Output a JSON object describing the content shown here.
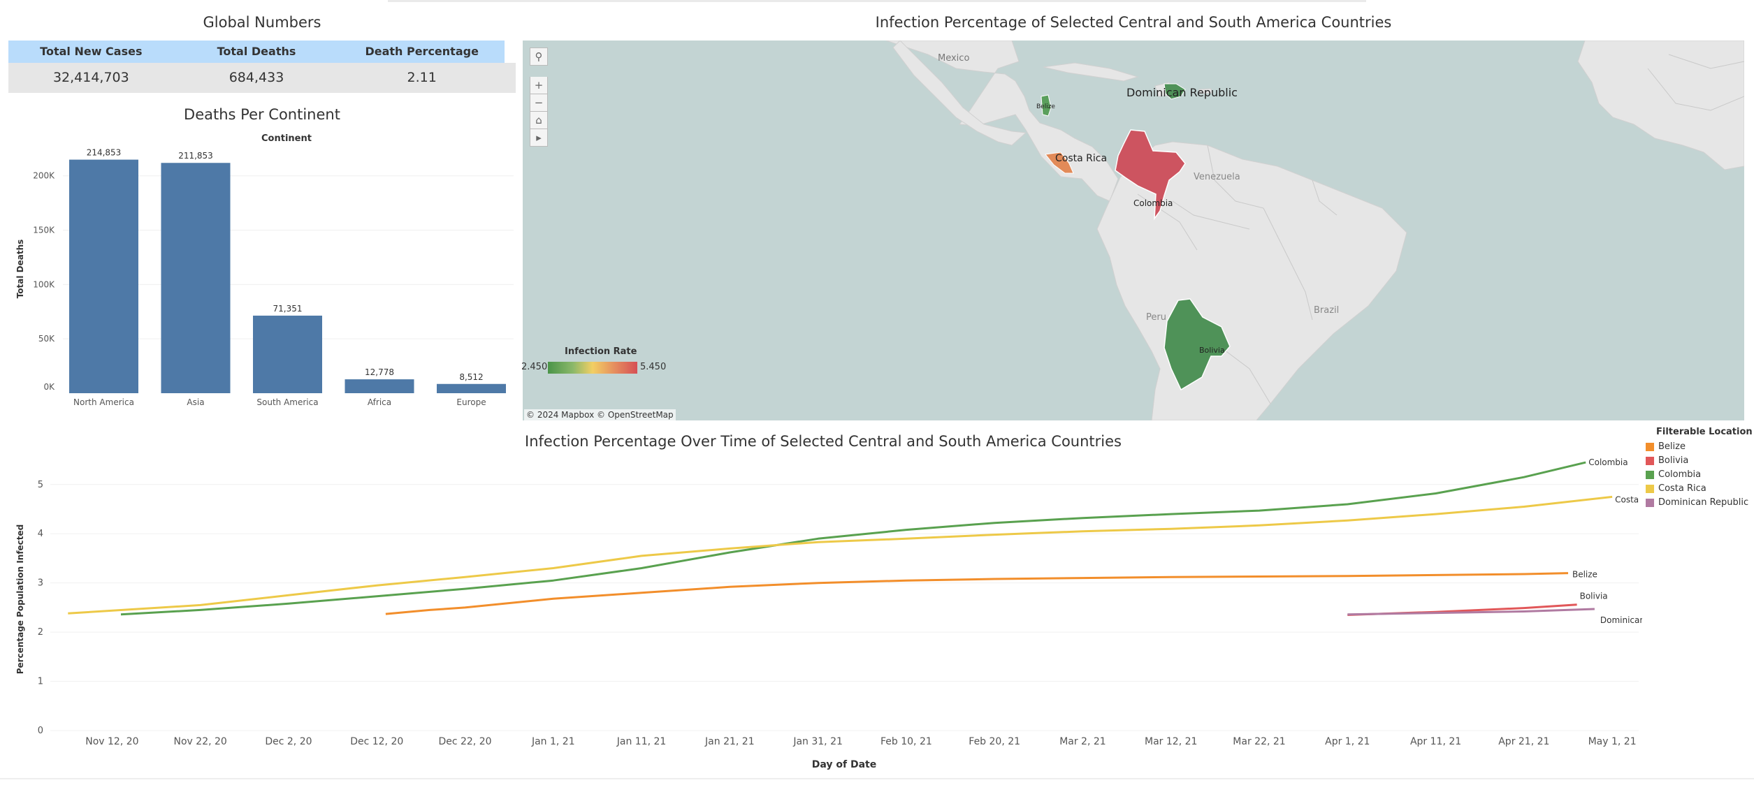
{
  "global_numbers": {
    "title": "Global Numbers",
    "headers": [
      "Total New Cases",
      "Total Deaths",
      "Death Percentage"
    ],
    "values": [
      "32,414,703",
      "684,433",
      "2.11"
    ]
  },
  "colors": {
    "bar": "#4e79a7",
    "belize": "#f28e2b",
    "bolivia": "#e15759",
    "colombia": "#59a14f",
    "costa_rica": "#edc948",
    "dominican_republic": "#b07aa1",
    "header_bg": "#b9dcfb",
    "map_water": "#c3d4d3",
    "map_land": "#e6e6e6"
  },
  "map": {
    "title": "Infection Percentage of Selected Central and South America Countries",
    "countries": [
      "Dominican Republic",
      "Belize",
      "Costa Rica",
      "Colombia",
      "Bolivia"
    ],
    "place_labels": [
      "Mexico",
      "Venezuela",
      "Brazil",
      "Peru"
    ],
    "legend": {
      "title": "Infection Rate",
      "min": "2.450",
      "max": "5.450"
    },
    "attribution": "© 2024 Mapbox  © OpenStreetMap",
    "tools": [
      "search-icon",
      "zoom-in-icon",
      "zoom-out-icon",
      "home-icon",
      "play-icon"
    ]
  },
  "filter_legend": {
    "title": "Filterable Location",
    "items": [
      "Belize",
      "Bolivia",
      "Colombia",
      "Costa Rica",
      "Dominican Republic"
    ]
  },
  "chart_data": [
    {
      "type": "bar",
      "title": "Deaths Per Continent",
      "top_label": "Continent",
      "ylabel": "Total Deaths",
      "categories": [
        "North America",
        "Asia",
        "South America",
        "Africa",
        "Europe"
      ],
      "values": [
        214853,
        211853,
        71351,
        12778,
        8512
      ],
      "value_labels": [
        "214,853",
        "211,853",
        "71,351",
        "12,778",
        "8,512"
      ],
      "yticks": [
        0,
        50000,
        100000,
        150000,
        200000
      ],
      "ytick_labels": [
        "0K",
        "50K",
        "100K",
        "150K",
        "200K"
      ],
      "ylim": [
        0,
        230000
      ],
      "grid": true
    },
    {
      "type": "line",
      "title": "Infection Percentage Over Time of Selected Central and South America Countries",
      "xlabel": "Day of Date",
      "ylabel": "Percentage Population Infected",
      "xlim": [
        "2020-11-05",
        "2021-05-04"
      ],
      "ylim": [
        0,
        5.65
      ],
      "yticks": [
        0,
        1,
        2,
        3,
        4,
        5
      ],
      "xticks": [
        "2020-11-12",
        "2020-11-22",
        "2020-12-02",
        "2020-12-12",
        "2020-12-22",
        "2021-01-01",
        "2021-01-11",
        "2021-01-21",
        "2021-01-31",
        "2021-02-10",
        "2021-02-20",
        "2021-03-02",
        "2021-03-12",
        "2021-03-22",
        "2021-04-01",
        "2021-04-11",
        "2021-04-21",
        "2021-05-01"
      ],
      "xtick_labels": [
        "Nov 12, 20",
        "Nov 22, 20",
        "Dec 2, 20",
        "Dec 12, 20",
        "Dec 22, 20",
        "Jan 1, 21",
        "Jan 11, 21",
        "Jan 21, 21",
        "Jan 31, 21",
        "Feb 10, 21",
        "Feb 20, 21",
        "Mar 2, 21",
        "Mar 12, 21",
        "Mar 22, 21",
        "Apr 1, 21",
        "Apr 11, 21",
        "Apr 21, 21",
        "May 1, 21"
      ],
      "grid": true,
      "series": [
        {
          "name": "Colombia",
          "color": "#59a14f",
          "points": [
            [
              "2020-11-13",
              2.36
            ],
            [
              "2020-11-22",
              2.45
            ],
            [
              "2020-12-02",
              2.58
            ],
            [
              "2020-12-12",
              2.73
            ],
            [
              "2020-12-22",
              2.88
            ],
            [
              "2021-01-01",
              3.05
            ],
            [
              "2021-01-11",
              3.3
            ],
            [
              "2021-01-21",
              3.62
            ],
            [
              "2021-01-31",
              3.9
            ],
            [
              "2021-02-10",
              4.08
            ],
            [
              "2021-02-20",
              4.22
            ],
            [
              "2021-03-02",
              4.32
            ],
            [
              "2021-03-12",
              4.4
            ],
            [
              "2021-03-22",
              4.47
            ],
            [
              "2021-04-01",
              4.6
            ],
            [
              "2021-04-11",
              4.82
            ],
            [
              "2021-04-21",
              5.15
            ],
            [
              "2021-04-28",
              5.45
            ]
          ]
        },
        {
          "name": "Costa Rica",
          "color": "#edc948",
          "points": [
            [
              "2020-11-07",
              2.38
            ],
            [
              "2020-11-22",
              2.55
            ],
            [
              "2020-12-02",
              2.75
            ],
            [
              "2020-12-12",
              2.95
            ],
            [
              "2020-12-22",
              3.12
            ],
            [
              "2021-01-01",
              3.3
            ],
            [
              "2021-01-11",
              3.55
            ],
            [
              "2021-01-21",
              3.7
            ],
            [
              "2021-01-31",
              3.83
            ],
            [
              "2021-02-10",
              3.9
            ],
            [
              "2021-02-20",
              3.98
            ],
            [
              "2021-03-02",
              4.05
            ],
            [
              "2021-03-12",
              4.1
            ],
            [
              "2021-03-22",
              4.17
            ],
            [
              "2021-04-01",
              4.27
            ],
            [
              "2021-04-11",
              4.4
            ],
            [
              "2021-04-21",
              4.55
            ],
            [
              "2021-05-01",
              4.75
            ]
          ]
        },
        {
          "name": "Belize",
          "color": "#f28e2b",
          "points": [
            [
              "2020-12-13",
              2.37
            ],
            [
              "2020-12-18",
              2.45
            ],
            [
              "2020-12-22",
              2.5
            ],
            [
              "2021-01-01",
              2.68
            ],
            [
              "2021-01-11",
              2.8
            ],
            [
              "2021-01-21",
              2.92
            ],
            [
              "2021-01-31",
              3.0
            ],
            [
              "2021-02-10",
              3.05
            ],
            [
              "2021-02-20",
              3.08
            ],
            [
              "2021-03-02",
              3.1
            ],
            [
              "2021-03-12",
              3.12
            ],
            [
              "2021-03-22",
              3.13
            ],
            [
              "2021-04-01",
              3.14
            ],
            [
              "2021-04-11",
              3.16
            ],
            [
              "2021-04-21",
              3.18
            ],
            [
              "2021-04-26",
              3.2
            ]
          ]
        },
        {
          "name": "Bolivia",
          "color": "#e15759",
          "points": [
            [
              "2021-04-01",
              2.35
            ],
            [
              "2021-04-11",
              2.41
            ],
            [
              "2021-04-21",
              2.49
            ],
            [
              "2021-04-27",
              2.56
            ]
          ]
        },
        {
          "name": "Dominican Republic",
          "color": "#b07aa1",
          "points": [
            [
              "2021-04-01",
              2.36
            ],
            [
              "2021-04-11",
              2.39
            ],
            [
              "2021-04-21",
              2.42
            ],
            [
              "2021-04-29",
              2.47
            ]
          ]
        }
      ]
    }
  ]
}
